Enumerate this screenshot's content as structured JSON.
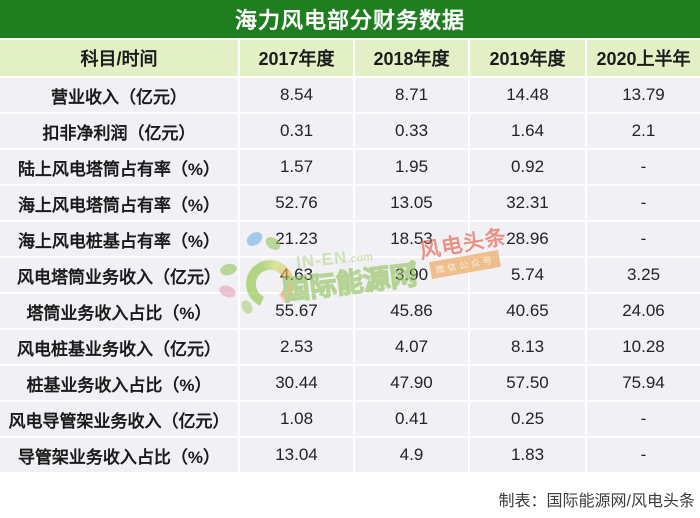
{
  "title": "海力风电部分财务数据",
  "chart_data": {
    "type": "table",
    "title": "海力风电部分财务数据",
    "columns": [
      "科目/时间",
      "2017年度",
      "2018年度",
      "2019年度",
      "2020上半年"
    ],
    "rows": [
      {
        "label": "营业收入（亿元）",
        "values": [
          "8.54",
          "8.71",
          "14.48",
          "13.79"
        ]
      },
      {
        "label": "扣非净利润（亿元）",
        "values": [
          "0.31",
          "0.33",
          "1.64",
          "2.1"
        ]
      },
      {
        "label": "陆上风电塔筒占有率（%）",
        "values": [
          "1.57",
          "1.95",
          "0.92",
          "-"
        ]
      },
      {
        "label": "海上风电塔筒占有率（%）",
        "values": [
          "52.76",
          "13.05",
          "32.31",
          "-"
        ]
      },
      {
        "label": "海上风电桩基占有率（%）",
        "values": [
          "21.23",
          "18.53",
          "28.96",
          "-"
        ]
      },
      {
        "label": "风电塔筒业务收入（亿元）",
        "values": [
          "4.63",
          "3.90",
          "5.74",
          "3.25"
        ]
      },
      {
        "label": "塔筒业务收入占比（%）",
        "values": [
          "55.67",
          "45.86",
          "40.65",
          "24.06"
        ]
      },
      {
        "label": "风电桩基业务收入（亿元）",
        "values": [
          "2.53",
          "4.07",
          "8.13",
          "10.28"
        ]
      },
      {
        "label": "桩基业务收入占比（%）",
        "values": [
          "30.44",
          "47.90",
          "57.50",
          "75.94"
        ]
      },
      {
        "label": "风电导管架业务收入（亿元）",
        "values": [
          "1.08",
          "0.41",
          "0.25",
          "-"
        ]
      },
      {
        "label": "导管架业务收入占比（%）",
        "values": [
          "13.04",
          "4.9",
          "1.83",
          "-"
        ]
      }
    ]
  },
  "footer": "制表：国际能源网/风电头条",
  "watermark": {
    "site_en": "IN-EN",
    "site_en_suffix": ".com",
    "site_cn": "国际能源网",
    "brand": "风电头条",
    "brand_sub": "微信公众号"
  },
  "colors": {
    "title-bg": "#1f7e20",
    "header-bg": "#e3f0c6",
    "row-bg": "#f0f0f5",
    "logo-green": "#8ec63f",
    "brand-red": "#e25845",
    "banner-orange": "#eda04d"
  }
}
